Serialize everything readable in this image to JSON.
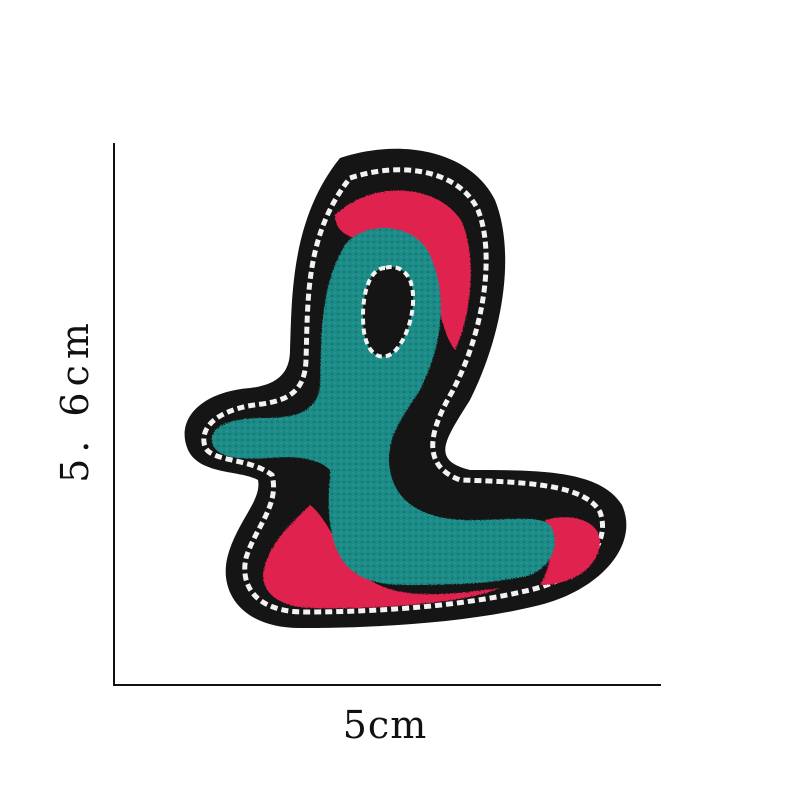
{
  "dimensions": {
    "width_label": "5cm",
    "height_label": "5. 6cm"
  },
  "product": {
    "icon": "letter-l-chenille-patch-icon",
    "colors": {
      "felt_border": "#151515",
      "stitch": "#f2f2f2",
      "teal": "#1e8c88",
      "pink": "#e0204f"
    }
  }
}
